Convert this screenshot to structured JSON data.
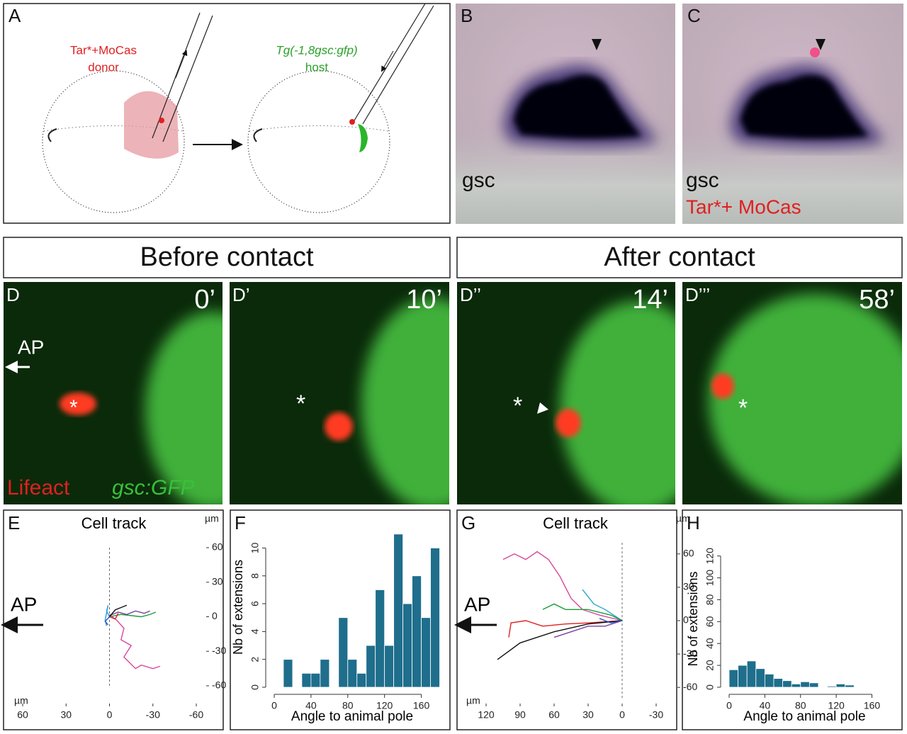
{
  "panels": {
    "A": {
      "label": "A",
      "donor_line1": "Tar*+MoCas",
      "donor_line2": "donor",
      "host_line1": "Tg(-1,8gsc:gfp)",
      "host_line2": "host"
    },
    "B": {
      "label": "B",
      "marker": "gsc"
    },
    "C": {
      "label": "C",
      "marker": "gsc",
      "injected": "Tar*+ MoCas"
    },
    "headers": [
      "Before contact",
      "After contact"
    ],
    "D": [
      {
        "label": "D",
        "time": "0’"
      },
      {
        "label": "D’",
        "time": "10’"
      },
      {
        "label": "D’’",
        "time": "14’"
      },
      {
        "label": "D’’’",
        "time": "58’"
      }
    ],
    "D_axis": "AP",
    "D_stains": [
      "Lifeact",
      "gsc:GFP"
    ]
  },
  "chart_data": [
    {
      "panel": "E",
      "type": "line",
      "title": "Cell track",
      "x_unit": "µm",
      "y_unit": "µm",
      "axis_label": "AP",
      "xlim": [
        60,
        -60
      ],
      "ylim": [
        -60,
        60
      ],
      "xticks": [
        60,
        30,
        0,
        -30,
        -60
      ],
      "yticks": [
        60,
        30,
        0,
        -30,
        -60
      ],
      "series": [
        {
          "color": "#d9479a",
          "x": [
            0,
            -5,
            -10,
            -8,
            -15,
            -10,
            -18,
            -22,
            -30,
            -35
          ],
          "y": [
            2,
            -3,
            -10,
            -20,
            -25,
            -35,
            -45,
            -42,
            -45,
            -43
          ]
        },
        {
          "color": "#1a9e3a",
          "x": [
            0,
            -8,
            -15,
            -22,
            -28,
            -32
          ],
          "y": [
            0,
            2,
            1,
            0,
            2,
            4
          ]
        },
        {
          "color": "#7b3fa0",
          "x": [
            0,
            -6,
            -12,
            -18,
            -24,
            -28
          ],
          "y": [
            1,
            4,
            2,
            5,
            3,
            5
          ]
        },
        {
          "color": "#2a9fd6",
          "x": [
            0,
            2,
            1,
            3,
            2
          ],
          "y": [
            0,
            5,
            10,
            -3,
            -8
          ]
        },
        {
          "color": "#111111",
          "x": [
            0,
            -4,
            -8,
            -12
          ],
          "y": [
            0,
            6,
            8,
            10
          ]
        },
        {
          "color": "#e02020",
          "x": [
            0,
            -4,
            -6
          ],
          "y": [
            0,
            -2,
            3
          ]
        },
        {
          "color": "#2255cc",
          "x": [
            0,
            3,
            1
          ],
          "y": [
            0,
            -4,
            -7
          ]
        }
      ]
    },
    {
      "panel": "F",
      "type": "histogram",
      "xlabel": "Angle to animal pole",
      "ylabel": "Nb of extensions",
      "color": "#1f6e8c",
      "bins": [
        0,
        10,
        20,
        30,
        40,
        50,
        60,
        70,
        80,
        90,
        100,
        110,
        120,
        130,
        140,
        150,
        160,
        170,
        180
      ],
      "counts": [
        0,
        2,
        0,
        1,
        1,
        2,
        0,
        5,
        2,
        1,
        3,
        7,
        3,
        11,
        6,
        8,
        5,
        10
      ],
      "xlim": [
        0,
        185
      ],
      "ylim": [
        0,
        11.5
      ],
      "xticks": [
        0,
        40,
        80,
        120,
        160
      ],
      "yticks": [
        0,
        2,
        4,
        6,
        8,
        10
      ]
    },
    {
      "panel": "G",
      "type": "line",
      "title": "Cell track",
      "x_unit": "µm",
      "y_unit": "µm",
      "axis_label": "AP",
      "xlim": [
        130,
        -40
      ],
      "ylim": [
        -70,
        70
      ],
      "xticks": [
        120,
        90,
        60,
        30,
        0,
        -30
      ],
      "yticks": [
        60,
        30,
        0,
        -30,
        -60
      ],
      "series": [
        {
          "color": "#d9479a",
          "x": [
            105,
            95,
            85,
            75,
            65,
            55,
            45,
            35,
            20,
            0
          ],
          "y": [
            55,
            60,
            55,
            62,
            55,
            40,
            20,
            10,
            5,
            0
          ]
        },
        {
          "color": "#2aa8c8",
          "x": [
            35,
            25,
            15,
            0
          ],
          "y": [
            28,
            15,
            10,
            0
          ]
        },
        {
          "color": "#1a9e3a",
          "x": [
            70,
            60,
            50,
            30,
            10,
            0
          ],
          "y": [
            10,
            15,
            10,
            10,
            5,
            0
          ]
        },
        {
          "color": "#e02020",
          "x": [
            100,
            98,
            85,
            70,
            50,
            30,
            0
          ],
          "y": [
            -15,
            -2,
            0,
            -5,
            -3,
            -2,
            0
          ]
        },
        {
          "color": "#111111",
          "x": [
            110,
            90,
            60,
            30,
            0
          ],
          "y": [
            -35,
            -20,
            -10,
            -3,
            0
          ]
        },
        {
          "color": "#7b3fa0",
          "x": [
            60,
            45,
            30,
            15,
            0
          ],
          "y": [
            -15,
            -10,
            -5,
            -5,
            0
          ]
        },
        {
          "color": "#2255cc",
          "x": [
            20,
            10,
            0
          ],
          "y": [
            2,
            -2,
            0
          ]
        }
      ]
    },
    {
      "panel": "H",
      "type": "histogram",
      "xlabel": "Angle to animal pole",
      "ylabel": "Nb of extensions",
      "color": "#1f6e8c",
      "bins": [
        0,
        10,
        20,
        30,
        40,
        50,
        60,
        70,
        80,
        90,
        100,
        110,
        120,
        130,
        140
      ],
      "counts": [
        16,
        20,
        24,
        17,
        12,
        8,
        6,
        3,
        5,
        4,
        0,
        1,
        3,
        2
      ],
      "xlim": [
        0,
        185
      ],
      "ylim": [
        0,
        125
      ],
      "xticks": [
        0,
        40,
        80,
        120,
        160
      ],
      "yticks": [
        0,
        20,
        40,
        60,
        80,
        100,
        120
      ]
    }
  ]
}
